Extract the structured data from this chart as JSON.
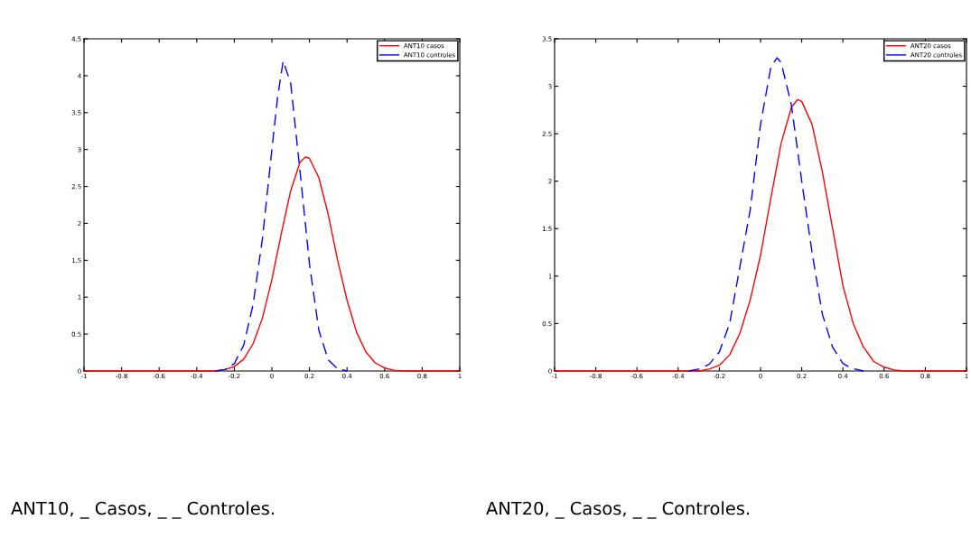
{
  "chart_data": [
    {
      "type": "line",
      "annotations": [
        "ANT10, _ Casos, _ _ Controles."
      ],
      "xlim": [
        -1,
        1
      ],
      "ylim": [
        0,
        4.5
      ],
      "xticks": [
        -1,
        -0.8,
        -0.6,
        -0.4,
        -0.2,
        0,
        0.2,
        0.4,
        0.6,
        0.8,
        1
      ],
      "yticks": [
        0,
        0.5,
        1,
        1.5,
        2,
        2.5,
        3,
        3.5,
        4,
        4.5
      ],
      "legend": "top right",
      "grid": false,
      "series": [
        {
          "name": "ANT10 casos",
          "color": "#ff0000",
          "line_style": "solid",
          "x": [
            -1,
            -0.3,
            -0.25,
            -0.2,
            -0.15,
            -0.1,
            -0.05,
            0,
            0.05,
            0.1,
            0.15,
            0.18,
            0.2,
            0.25,
            0.3,
            0.35,
            0.4,
            0.45,
            0.5,
            0.55,
            0.6,
            0.65,
            0.7,
            1
          ],
          "values": [
            0,
            0,
            0.02,
            0.06,
            0.16,
            0.37,
            0.72,
            1.24,
            1.86,
            2.44,
            2.83,
            2.9,
            2.88,
            2.62,
            2.12,
            1.5,
            0.96,
            0.53,
            0.26,
            0.11,
            0.04,
            0.01,
            0,
            0
          ]
        },
        {
          "name": "ANT10 controles",
          "color": "#0000ff",
          "line_style": "dashed",
          "x": [
            -0.3,
            -0.25,
            -0.2,
            -0.15,
            -0.1,
            -0.05,
            0,
            0.03,
            0.06,
            0.1,
            0.15,
            0.2,
            0.25,
            0.3,
            0.35,
            0.4
          ],
          "values": [
            0,
            0.02,
            0.1,
            0.35,
            0.9,
            1.8,
            3.0,
            3.7,
            4.2,
            3.9,
            2.7,
            1.45,
            0.55,
            0.15,
            0.03,
            0
          ]
        }
      ]
    },
    {
      "type": "line",
      "annotations": [
        "ANT20, _ Casos, _ _ Controles."
      ],
      "xlim": [
        -1,
        1
      ],
      "ylim": [
        0,
        3.5
      ],
      "xticks": [
        -1,
        -0.8,
        -0.6,
        -0.4,
        -0.2,
        0,
        0.2,
        0.4,
        0.6,
        0.8,
        1
      ],
      "yticks": [
        0,
        0.5,
        1,
        1.5,
        2,
        2.5,
        3,
        3.5
      ],
      "legend": "top right",
      "grid": false,
      "series": [
        {
          "name": "ANT20 casos",
          "color": "#ff0000",
          "line_style": "solid",
          "x": [
            -1,
            -0.3,
            -0.25,
            -0.2,
            -0.15,
            -0.1,
            -0.05,
            0,
            0.05,
            0.1,
            0.15,
            0.18,
            0.2,
            0.25,
            0.3,
            0.35,
            0.4,
            0.45,
            0.5,
            0.55,
            0.6,
            0.65,
            0.7,
            1
          ],
          "values": [
            0,
            0,
            0.02,
            0.06,
            0.17,
            0.4,
            0.75,
            1.22,
            1.82,
            2.4,
            2.78,
            2.86,
            2.84,
            2.6,
            2.1,
            1.5,
            0.9,
            0.5,
            0.25,
            0.1,
            0.04,
            0.01,
            0,
            0
          ]
        },
        {
          "name": "ANT20 controles",
          "color": "#0000ff",
          "line_style": "dashed",
          "x": [
            -0.35,
            -0.3,
            -0.25,
            -0.2,
            -0.15,
            -0.1,
            -0.05,
            0,
            0.05,
            0.08,
            0.1,
            0.15,
            0.2,
            0.25,
            0.3,
            0.35,
            0.4,
            0.44,
            0.5
          ],
          "values": [
            0,
            0.02,
            0.07,
            0.2,
            0.5,
            1.1,
            1.7,
            2.6,
            3.2,
            3.3,
            3.25,
            2.8,
            2.0,
            1.25,
            0.6,
            0.25,
            0.08,
            0.03,
            0
          ]
        }
      ]
    }
  ]
}
